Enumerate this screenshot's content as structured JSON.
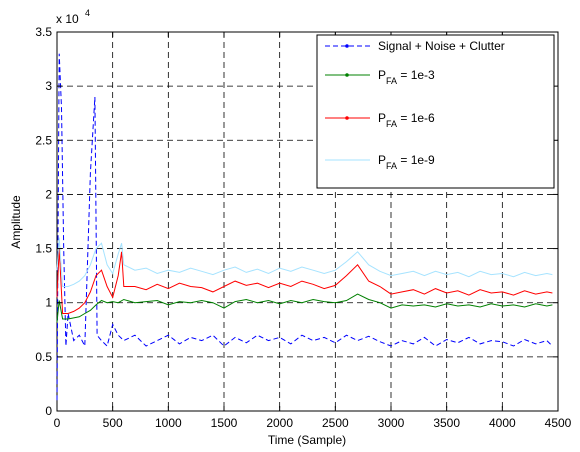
{
  "chart_data": {
    "type": "line",
    "title": "",
    "xlabel": "Time (Sample)",
    "ylabel": "Amplitude",
    "y_exponent_label": "x 10",
    "y_exponent_power": "4",
    "xlim": [
      0,
      4500
    ],
    "ylim": [
      0,
      35000
    ],
    "x_ticks": [
      0,
      500,
      1000,
      1500,
      2000,
      2500,
      3000,
      3500,
      4000,
      4500
    ],
    "x_tick_labels": [
      "0",
      "500",
      "1000",
      "1500",
      "2000",
      "2500",
      "3000",
      "3500",
      "4000",
      "4500"
    ],
    "y_ticks": [
      0,
      5000,
      10000,
      15000,
      20000,
      25000,
      30000,
      35000
    ],
    "y_tick_labels": [
      "0",
      "0.5",
      "1",
      "1.5",
      "2",
      "2.5",
      "3",
      "3.5"
    ],
    "grid": true,
    "legend_position": "top-right",
    "series": [
      {
        "name": "Signal + Noise + Clutter",
        "color": "#0000ff",
        "style": "dashed",
        "x": [
          0,
          20,
          40,
          60,
          80,
          100,
          150,
          200,
          250,
          300,
          340,
          360,
          400,
          450,
          500,
          550,
          600,
          700,
          800,
          900,
          1000,
          1100,
          1200,
          1300,
          1400,
          1500,
          1600,
          1700,
          1800,
          1900,
          2000,
          2100,
          2200,
          2300,
          2400,
          2500,
          2600,
          2700,
          2800,
          2900,
          3000,
          3100,
          3200,
          3300,
          3400,
          3500,
          3600,
          3700,
          3800,
          3900,
          4000,
          4100,
          4200,
          4300,
          4400,
          4450
        ],
        "y": [
          1000,
          33000,
          28000,
          15000,
          6000,
          9000,
          6500,
          7000,
          6000,
          22000,
          29000,
          7000,
          6500,
          6000,
          8000,
          7000,
          6500,
          7000,
          6000,
          6500,
          7000,
          6200,
          6800,
          6500,
          7000,
          6000,
          6800,
          6300,
          7000,
          6500,
          6800,
          6200,
          7000,
          6500,
          6800,
          6300,
          7000,
          6500,
          6900,
          6400,
          6000,
          6500,
          6200,
          6800,
          6000,
          6600,
          6300,
          6800,
          6200,
          6500,
          6400,
          6000,
          6600,
          6200,
          6500,
          6000
        ]
      },
      {
        "name": "P_FA = 1e-3",
        "color": "#008000",
        "style": "solid",
        "x": [
          0,
          20,
          50,
          100,
          150,
          200,
          250,
          300,
          350,
          400,
          450,
          500,
          550,
          600,
          700,
          800,
          900,
          1000,
          1100,
          1200,
          1300,
          1400,
          1500,
          1600,
          1700,
          1800,
          1900,
          2000,
          2100,
          2200,
          2300,
          2400,
          2500,
          2600,
          2700,
          2800,
          2900,
          3000,
          3100,
          3200,
          3300,
          3400,
          3500,
          3600,
          3700,
          3800,
          3900,
          4000,
          4100,
          4200,
          4300,
          4400,
          4450
        ],
        "y": [
          8200,
          10200,
          8500,
          8500,
          8600,
          8700,
          9000,
          9300,
          9800,
          10200,
          10000,
          10100,
          10000,
          10300,
          10000,
          10100,
          10200,
          9800,
          10100,
          10000,
          10200,
          10000,
          9500,
          10100,
          10300,
          10000,
          10200,
          9900,
          10200,
          10000,
          10300,
          10100,
          10000,
          10200,
          10800,
          10300,
          10000,
          9500,
          9800,
          9700,
          9800,
          9600,
          9900,
          9700,
          9800,
          9600,
          9900,
          9700,
          9800,
          9600,
          9900,
          9700,
          9800
        ]
      },
      {
        "name": "P_FA = 1e-6",
        "color": "#ff0000",
        "style": "solid",
        "x": [
          0,
          20,
          50,
          100,
          150,
          200,
          250,
          300,
          350,
          400,
          450,
          500,
          550,
          580,
          600,
          700,
          800,
          900,
          1000,
          1100,
          1200,
          1300,
          1400,
          1500,
          1600,
          1700,
          1800,
          1900,
          2000,
          2100,
          2200,
          2300,
          2400,
          2500,
          2600,
          2700,
          2800,
          2900,
          3000,
          3100,
          3200,
          3300,
          3400,
          3500,
          3600,
          3700,
          3800,
          3900,
          4000,
          4100,
          4200,
          4300,
          4400,
          4450
        ],
        "y": [
          10500,
          15000,
          9000,
          9000,
          9200,
          9500,
          10000,
          11000,
          12500,
          13000,
          11500,
          10500,
          12500,
          14700,
          11500,
          11500,
          11200,
          11700,
          11300,
          11800,
          11500,
          11400,
          11000,
          11500,
          12000,
          11600,
          11800,
          11400,
          11800,
          11500,
          12000,
          11700,
          11300,
          11600,
          12500,
          13500,
          12000,
          11500,
          10800,
          11000,
          11200,
          10800,
          11300,
          10900,
          11100,
          10700,
          11200,
          10900,
          11000,
          10700,
          11100,
          10800,
          11000,
          10900
        ]
      },
      {
        "name": "P_FA = 1e-9",
        "color": "#a6e3ff",
        "style": "solid",
        "x": [
          0,
          20,
          50,
          100,
          150,
          200,
          250,
          300,
          350,
          400,
          450,
          500,
          550,
          580,
          600,
          700,
          800,
          900,
          1000,
          1100,
          1200,
          1300,
          1400,
          1500,
          1600,
          1700,
          1800,
          1900,
          2000,
          2100,
          2200,
          2300,
          2400,
          2500,
          2600,
          2700,
          2800,
          2900,
          3000,
          3100,
          3200,
          3300,
          3400,
          3500,
          3600,
          3700,
          3800,
          3900,
          4000,
          4100,
          4200,
          4300,
          4400,
          4450
        ],
        "y": [
          13000,
          16000,
          11500,
          11500,
          11700,
          12000,
          12500,
          13500,
          15000,
          15500,
          13500,
          12700,
          14500,
          15500,
          13500,
          13000,
          13200,
          12700,
          13000,
          12800,
          13200,
          12900,
          12600,
          13000,
          13300,
          12800,
          13100,
          12700,
          13200,
          12900,
          13300,
          13000,
          12700,
          13000,
          13800,
          14700,
          13500,
          12900,
          12500,
          12700,
          12900,
          12500,
          12900,
          12600,
          12800,
          12400,
          12900,
          12600,
          12700,
          12400,
          12800,
          12500,
          12700,
          12600
        ]
      }
    ],
    "legend": [
      {
        "main": "Signal + Noise + Clutter",
        "sub": ""
      },
      {
        "main": "P",
        "sub": "FA",
        "rest": " = 1e-3"
      },
      {
        "main": "P",
        "sub": "FA",
        "rest": " = 1e-6"
      },
      {
        "main": "P",
        "sub": "FA",
        "rest": " = 1e-9"
      }
    ]
  }
}
